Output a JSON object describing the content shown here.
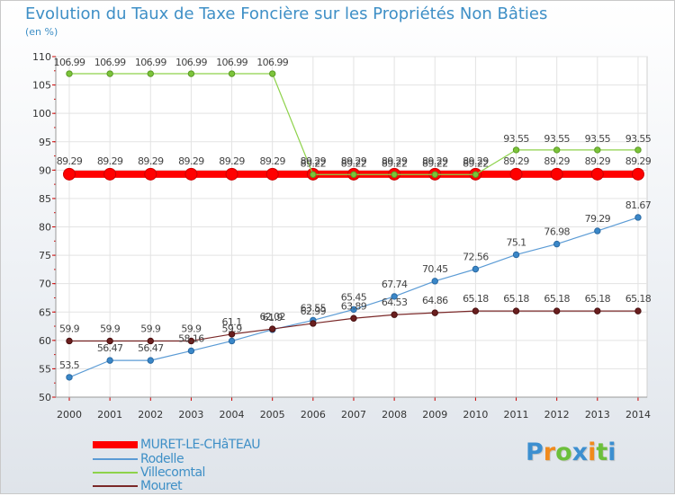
{
  "chart_data": {
    "type": "line",
    "title": "Evolution du Taux de Taxe Foncière sur les Propriétés Non Bâties",
    "ylabel": "(en %)",
    "xlabel": "",
    "categories": [
      "2000",
      "2001",
      "2002",
      "2003",
      "2004",
      "2005",
      "2006",
      "2007",
      "2008",
      "2009",
      "2010",
      "2011",
      "2012",
      "2013",
      "2014"
    ],
    "ylim": [
      50,
      110
    ],
    "yticks": [
      "50",
      "55",
      "60",
      "65",
      "70",
      "75",
      "80",
      "85",
      "90",
      "95",
      "100",
      "105",
      "110"
    ],
    "series": [
      {
        "name": "MURET-LE-CHâTEAU",
        "color": "#ff0000",
        "values": [
          89.29,
          89.29,
          89.29,
          89.29,
          89.29,
          89.29,
          89.29,
          89.29,
          89.29,
          89.29,
          89.29,
          89.29,
          89.29,
          89.29,
          89.29
        ],
        "labels": [
          "89.29",
          "89.29",
          "89.29",
          "89.29",
          "89.29",
          "89.29",
          "89.29",
          "89.29",
          "89.29",
          "89.29",
          "89.29",
          "89.29",
          "89.29",
          "89.29",
          "89.29"
        ]
      },
      {
        "name": "Rodelle",
        "color": "#5b9bd5",
        "values": [
          53.5,
          56.47,
          56.47,
          58.16,
          59.9,
          61.9,
          63.55,
          65.45,
          67.74,
          70.45,
          72.56,
          75.1,
          76.98,
          79.29,
          81.67
        ],
        "labels": [
          "53.5",
          "56.47",
          "56.47",
          "58.16",
          "59.9",
          "61.9",
          "63.55",
          "65.45",
          "67.74",
          "70.45",
          "72.56",
          "75.1",
          "76.98",
          "79.29",
          "81.67"
        ]
      },
      {
        "name": "Villecomtal",
        "color": "#8ed24b",
        "values": [
          106.99,
          106.99,
          106.99,
          106.99,
          106.99,
          106.99,
          89.22,
          89.22,
          89.22,
          89.22,
          89.22,
          93.55,
          93.55,
          93.55,
          93.55
        ],
        "labels": [
          "106.99",
          "106.99",
          "106.99",
          "106.99",
          "106.99",
          "106.99",
          "89.22",
          "89.22",
          "89.22",
          "89.22",
          "89.22",
          "93.55",
          "93.55",
          "93.55",
          "93.55"
        ]
      },
      {
        "name": "Mouret",
        "color": "#7a2828",
        "values": [
          59.9,
          59.9,
          59.9,
          59.9,
          61.1,
          62.02,
          62.99,
          63.89,
          64.53,
          64.86,
          65.18,
          65.18,
          65.18,
          65.18,
          65.18
        ],
        "labels": [
          "59.9",
          "59.9",
          "59.9",
          "59.9",
          "61.1",
          "62.02",
          "62.99",
          "63.89",
          "64.53",
          "64.86",
          "65.18",
          "65.18",
          "65.18",
          "65.18",
          "65.18"
        ]
      }
    ],
    "legend_position": "bottom-left"
  },
  "brand": {
    "letters": [
      "P",
      "r",
      "o",
      "x",
      "i",
      "t",
      "i"
    ],
    "colors": [
      "#3c8fd0",
      "#f08a1c",
      "#6cbf3b",
      "#3c8fd0",
      "#f08a1c",
      "#6cbf3b",
      "#3c8fd0"
    ]
  }
}
